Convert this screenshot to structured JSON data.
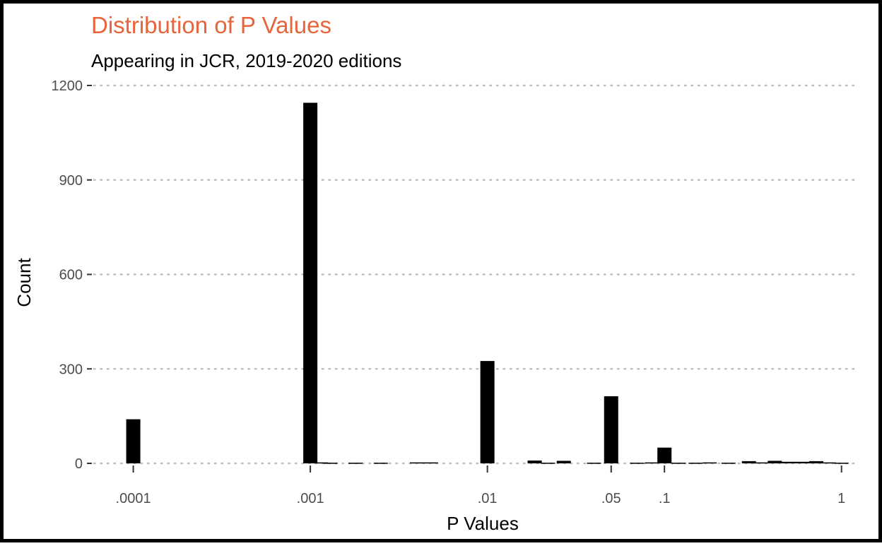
{
  "colors": {
    "title": "#e8643c",
    "bar": "#000000",
    "grid": "#bdbdbd",
    "tick_text": "#4d4d4d"
  },
  "chart_data": {
    "type": "bar",
    "title": "Distribution of P Values",
    "subtitle": "Appearing in JCR, 2019-2020 editions",
    "xlabel": "P Values",
    "ylabel": "Count",
    "x_scale": "log10",
    "xlim": [
      6e-05,
      1.25
    ],
    "ylim": [
      0,
      1200
    ],
    "y_ticks": [
      0,
      300,
      600,
      900,
      1200
    ],
    "y_tick_labels": [
      "0",
      "300",
      "600",
      "900",
      "1200"
    ],
    "x_ticks": [
      0.0001,
      0.001,
      0.01,
      0.05,
      0.1,
      1
    ],
    "x_tick_labels": [
      ".0001",
      ".001",
      ".01",
      ".05",
      ".1",
      "1"
    ],
    "grid": "horizontal dotted",
    "bars": [
      {
        "x": 0.0001,
        "value": 140
      },
      {
        "x": 0.001,
        "value": 1145
      },
      {
        "x": 0.00115,
        "value": 3
      },
      {
        "x": 0.0013,
        "value": 2
      },
      {
        "x": 0.0018,
        "value": 2
      },
      {
        "x": 0.0025,
        "value": 2
      },
      {
        "x": 0.004,
        "value": 3
      },
      {
        "x": 0.0048,
        "value": 3
      },
      {
        "x": 0.01,
        "value": 325
      },
      {
        "x": 0.0185,
        "value": 9
      },
      {
        "x": 0.022,
        "value": 2
      },
      {
        "x": 0.027,
        "value": 8
      },
      {
        "x": 0.04,
        "value": 2
      },
      {
        "x": 0.05,
        "value": 213
      },
      {
        "x": 0.07,
        "value": 2
      },
      {
        "x": 0.085,
        "value": 3
      },
      {
        "x": 0.1,
        "value": 50
      },
      {
        "x": 0.12,
        "value": 2
      },
      {
        "x": 0.15,
        "value": 2
      },
      {
        "x": 0.18,
        "value": 3
      },
      {
        "x": 0.23,
        "value": 2
      },
      {
        "x": 0.3,
        "value": 7
      },
      {
        "x": 0.35,
        "value": 3
      },
      {
        "x": 0.42,
        "value": 8
      },
      {
        "x": 0.5,
        "value": 5
      },
      {
        "x": 0.6,
        "value": 5
      },
      {
        "x": 0.72,
        "value": 7
      },
      {
        "x": 0.85,
        "value": 3
      },
      {
        "x": 1,
        "value": 2
      }
    ]
  }
}
